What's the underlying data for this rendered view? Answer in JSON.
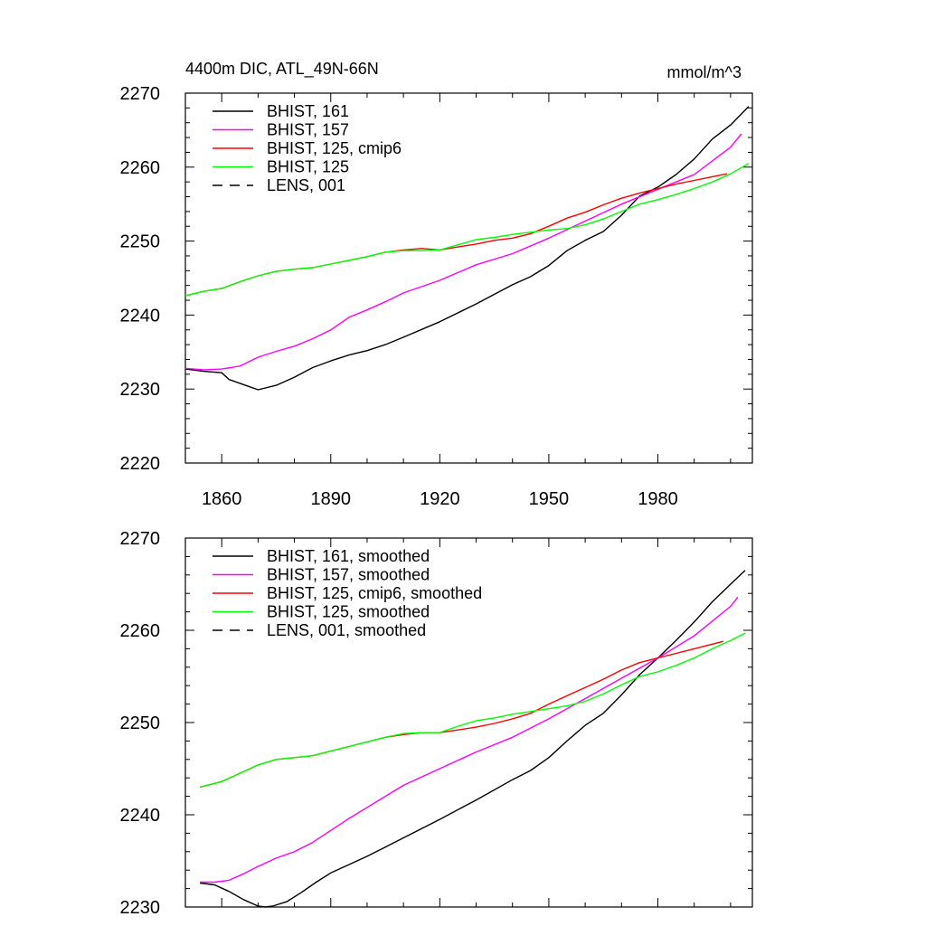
{
  "figure": {
    "title_left": "4400m DIC, ATL_49N-66N",
    "title_right": "mmol/m^3"
  },
  "colors": {
    "BHIST_161": "#000000",
    "BHIST_157": "#ff00ff",
    "BHIST_125_cmip6": "#ff0000",
    "BHIST_125": "#00ff00",
    "LENS_001": "#000000"
  },
  "chart_data": [
    {
      "type": "line",
      "x_axis": {
        "range": [
          1850,
          2006
        ],
        "ticks": [
          1860,
          1890,
          1920,
          1950,
          1980
        ],
        "tick_labels": [
          "1860",
          "1890",
          "1920",
          "1950",
          "1980"
        ]
      },
      "y_axis": {
        "range": [
          2220,
          2270
        ],
        "ticks": [
          2220,
          2230,
          2240,
          2250,
          2260,
          2270
        ],
        "tick_labels": [
          "2220",
          "2230",
          "2240",
          "2250",
          "2260",
          "2270"
        ]
      },
      "legend_position": "top-left",
      "series": [
        {
          "name": "BHIST, 161",
          "color": "#000000",
          "dash": "solid",
          "x": [
            1850,
            1855,
            1860,
            1862,
            1866,
            1870,
            1875,
            1880,
            1885,
            1890,
            1895,
            1900,
            1905,
            1910,
            1920,
            1930,
            1940,
            1945,
            1950,
            1955,
            1960,
            1965,
            1970,
            1975,
            1980,
            1985,
            1990,
            1995,
            2000,
            2005
          ],
          "y": [
            2232.7,
            2232.4,
            2232.2,
            2231.3,
            2230.6,
            2229.9,
            2230.5,
            2231.6,
            2232.9,
            2233.8,
            2234.6,
            2235.2,
            2236.0,
            2237.0,
            2239.1,
            2241.5,
            2244.1,
            2245.2,
            2246.7,
            2248.7,
            2250.1,
            2251.3,
            2253.5,
            2256.1,
            2257.3,
            2259.0,
            2261.1,
            2263.8,
            2265.7,
            2268.2
          ]
        },
        {
          "name": "BHIST, 157",
          "color": "#ff00ff",
          "dash": "solid",
          "x": [
            1850,
            1855,
            1860,
            1865,
            1870,
            1875,
            1880,
            1885,
            1890,
            1895,
            1900,
            1905,
            1910,
            1920,
            1930,
            1940,
            1950,
            1960,
            1970,
            1980,
            1990,
            2000,
            2003
          ],
          "y": [
            2232.8,
            2232.6,
            2232.7,
            2233.1,
            2234.3,
            2235.1,
            2235.8,
            2236.8,
            2238.0,
            2239.7,
            2240.7,
            2241.8,
            2243.0,
            2244.7,
            2246.8,
            2248.3,
            2250.4,
            2252.7,
            2255.0,
            2257.0,
            2259.0,
            2262.7,
            2264.5
          ]
        },
        {
          "name": "BHIST, 125, cmip6",
          "color": "#ff0000",
          "dash": "solid",
          "x": [
            1850,
            1855,
            1860,
            1865,
            1870,
            1875,
            1880,
            1885,
            1890,
            1895,
            1900,
            1905,
            1910,
            1915,
            1920,
            1925,
            1930,
            1935,
            1940,
            1945,
            1950,
            1955,
            1960,
            1965,
            1970,
            1975,
            1980,
            1985,
            1990,
            1995,
            1999
          ],
          "y": [
            2242.6,
            2243.2,
            2243.6,
            2244.5,
            2245.3,
            2245.9,
            2246.2,
            2246.4,
            2246.9,
            2247.4,
            2247.9,
            2248.5,
            2248.8,
            2249.0,
            2248.8,
            2249.2,
            2249.6,
            2250.1,
            2250.4,
            2251.0,
            2252.0,
            2253.1,
            2253.9,
            2254.9,
            2255.8,
            2256.5,
            2257.1,
            2257.7,
            2258.2,
            2258.7,
            2259.1
          ]
        },
        {
          "name": "BHIST, 125",
          "color": "#00ff00",
          "dash": "solid",
          "x": [
            1850,
            1855,
            1860,
            1865,
            1870,
            1875,
            1880,
            1885,
            1890,
            1895,
            1900,
            1905,
            1910,
            1915,
            1920,
            1925,
            1930,
            1935,
            1940,
            1945,
            1950,
            1955,
            1960,
            1965,
            1970,
            1975,
            1980,
            1985,
            1990,
            1995,
            2000,
            2005
          ],
          "y": [
            2242.6,
            2243.2,
            2243.6,
            2244.5,
            2245.3,
            2245.9,
            2246.2,
            2246.4,
            2246.9,
            2247.4,
            2247.9,
            2248.5,
            2248.7,
            2248.7,
            2248.8,
            2249.5,
            2250.2,
            2250.5,
            2250.9,
            2251.2,
            2251.5,
            2251.7,
            2252.2,
            2253.0,
            2254.0,
            2255.0,
            2255.6,
            2256.3,
            2257.1,
            2258.0,
            2259.1,
            2260.5
          ]
        },
        {
          "name": "LENS, 001",
          "color": "#000000",
          "dash": "dashed",
          "x": [],
          "y": []
        }
      ]
    },
    {
      "type": "line",
      "x_axis": {
        "range": [
          1850,
          2006
        ],
        "ticks": [
          1860,
          1890,
          1920,
          1950,
          1980
        ],
        "tick_labels": []
      },
      "y_axis": {
        "range": [
          2230,
          2270
        ],
        "ticks": [
          2230,
          2240,
          2250,
          2260,
          2270
        ],
        "tick_labels": [
          "2230",
          "2240",
          "2250",
          "2260",
          "2270"
        ]
      },
      "legend_position": "top-left",
      "series": [
        {
          "name": "BHIST, 161, smoothed",
          "color": "#000000",
          "dash": "solid",
          "x": [
            1854,
            1858,
            1862,
            1866,
            1870,
            1872,
            1874,
            1878,
            1882,
            1886,
            1890,
            1895,
            1900,
            1905,
            1910,
            1920,
            1930,
            1940,
            1945,
            1950,
            1955,
            1960,
            1965,
            1970,
            1975,
            1980,
            1985,
            1990,
            1995,
            2000,
            2004
          ],
          "y": [
            2232.6,
            2232.4,
            2231.7,
            2230.8,
            2230.1,
            2230.0,
            2230.1,
            2230.6,
            2231.6,
            2232.7,
            2233.7,
            2234.6,
            2235.5,
            2236.5,
            2237.5,
            2239.5,
            2241.6,
            2243.8,
            2244.8,
            2246.2,
            2248.0,
            2249.7,
            2251.0,
            2253.0,
            2255.2,
            2257.0,
            2258.9,
            2260.9,
            2263.1,
            2265.0,
            2266.5
          ]
        },
        {
          "name": "BHIST, 157, smoothed",
          "color": "#ff00ff",
          "dash": "solid",
          "x": [
            1854,
            1858,
            1862,
            1866,
            1870,
            1875,
            1880,
            1885,
            1890,
            1895,
            1900,
            1905,
            1910,
            1920,
            1930,
            1940,
            1950,
            1960,
            1970,
            1980,
            1990,
            2000,
            2002
          ],
          "y": [
            2232.7,
            2232.7,
            2232.9,
            2233.6,
            2234.4,
            2235.3,
            2236.0,
            2237.0,
            2238.3,
            2239.6,
            2240.8,
            2242.0,
            2243.2,
            2245.0,
            2246.8,
            2248.4,
            2250.4,
            2252.6,
            2254.8,
            2257.0,
            2259.4,
            2262.6,
            2263.6
          ]
        },
        {
          "name": "BHIST, 125, cmip6, smoothed",
          "color": "#ff0000",
          "dash": "solid",
          "x": [
            1854,
            1860,
            1865,
            1870,
            1875,
            1880,
            1885,
            1890,
            1895,
            1900,
            1905,
            1910,
            1915,
            1920,
            1925,
            1930,
            1935,
            1940,
            1945,
            1950,
            1955,
            1960,
            1965,
            1970,
            1975,
            1980,
            1985,
            1990,
            1995,
            1998
          ],
          "y": [
            2243.0,
            2243.6,
            2244.5,
            2245.4,
            2246.0,
            2246.2,
            2246.4,
            2246.9,
            2247.4,
            2247.9,
            2248.4,
            2248.7,
            2248.9,
            2248.9,
            2249.2,
            2249.5,
            2249.9,
            2250.4,
            2251.0,
            2252.0,
            2252.9,
            2253.8,
            2254.7,
            2255.7,
            2256.5,
            2257.0,
            2257.5,
            2258.0,
            2258.5,
            2258.8
          ]
        },
        {
          "name": "BHIST, 125, smoothed",
          "color": "#00ff00",
          "dash": "solid",
          "x": [
            1854,
            1860,
            1865,
            1870,
            1875,
            1880,
            1885,
            1890,
            1895,
            1900,
            1905,
            1910,
            1915,
            1920,
            1925,
            1930,
            1935,
            1940,
            1945,
            1950,
            1955,
            1960,
            1965,
            1970,
            1975,
            1980,
            1985,
            1990,
            1995,
            2000,
            2004
          ],
          "y": [
            2243.0,
            2243.6,
            2244.5,
            2245.4,
            2246.0,
            2246.2,
            2246.4,
            2246.9,
            2247.4,
            2247.9,
            2248.4,
            2248.8,
            2248.9,
            2248.9,
            2249.6,
            2250.2,
            2250.5,
            2250.9,
            2251.2,
            2251.5,
            2251.8,
            2252.3,
            2253.1,
            2254.1,
            2255.0,
            2255.5,
            2256.2,
            2257.0,
            2258.0,
            2258.9,
            2259.7
          ]
        },
        {
          "name": "LENS, 001, smoothed",
          "color": "#000000",
          "dash": "dashed",
          "x": [],
          "y": []
        }
      ]
    }
  ]
}
